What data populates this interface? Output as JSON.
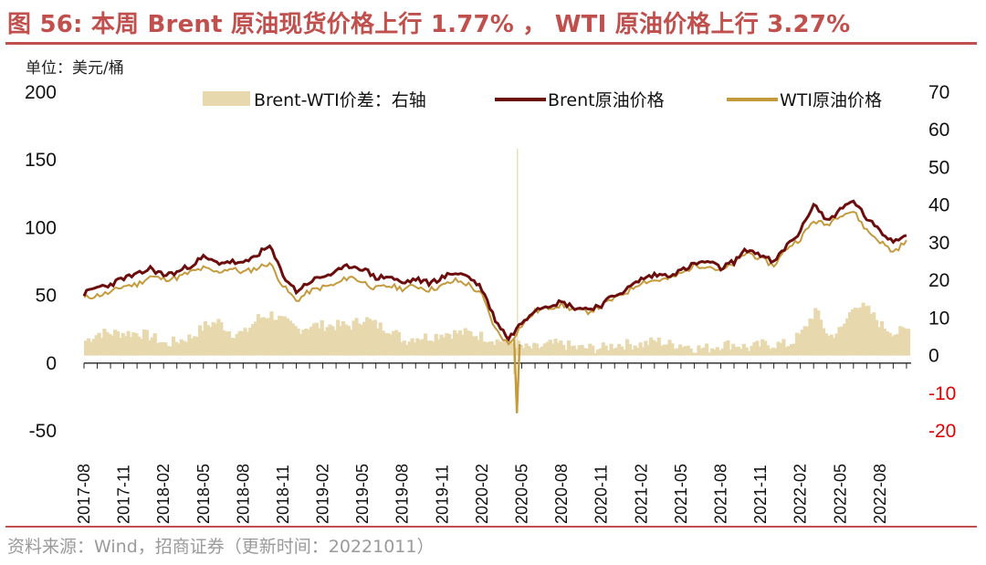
{
  "figure": {
    "title": "图 56:  本周 Brent 原油现货价格上行 1.77% ， WTI 原油价格上行 3.27%",
    "unit_label": "单位：美元/桶",
    "source": "资料来源：Wind，招商证券（更新时间：20221011）"
  },
  "colors": {
    "title_red": "#c0504d",
    "brent": "#6b0d0d",
    "wti": "#c49a3c",
    "spread": "#e8d8ae",
    "negative_tick": "#e00000"
  },
  "chart_data": {
    "type": "line",
    "left_axis": {
      "ylim": [
        -50,
        200
      ],
      "ticks": [
        "200",
        "150",
        "100",
        "50",
        "0",
        "-50"
      ],
      "tick_values": [
        200,
        150,
        100,
        50,
        0,
        -50
      ]
    },
    "right_axis": {
      "ylim": [
        -20,
        70
      ],
      "ticks": [
        "70",
        "60",
        "50",
        "40",
        "30",
        "20",
        "10",
        "0",
        "-10",
        "-20"
      ],
      "tick_values": [
        70,
        60,
        50,
        40,
        30,
        20,
        10,
        0,
        -10,
        -20
      ]
    },
    "x_ticks": [
      "2017-08",
      "2017-11",
      "2018-02",
      "2018-05",
      "2018-08",
      "2018-11",
      "2019-02",
      "2019-05",
      "2019-08",
      "2019-11",
      "2020-02",
      "2020-05",
      "2020-08",
      "2020-11",
      "2021-02",
      "2021-05",
      "2021-08",
      "2021-11",
      "2022-02",
      "2022-05",
      "2022-08"
    ],
    "x_range": [
      "2017-08",
      "2022-10"
    ],
    "legend": [
      "Brent-WTI价差：右轴",
      "Brent原油价格",
      "WTI原油价格"
    ],
    "legend_placement": "top",
    "series": [
      {
        "name": "Brent原油价格",
        "axis": "left",
        "points": [
          [
            "2017-08",
            51
          ],
          [
            "2017-09",
            56
          ],
          [
            "2017-10",
            58
          ],
          [
            "2017-11",
            63
          ],
          [
            "2017-12",
            65
          ],
          [
            "2018-01",
            70
          ],
          [
            "2018-02",
            65
          ],
          [
            "2018-03",
            67
          ],
          [
            "2018-04",
            72
          ],
          [
            "2018-05",
            78
          ],
          [
            "2018-06",
            74
          ],
          [
            "2018-07",
            75
          ],
          [
            "2018-08",
            73
          ],
          [
            "2018-09",
            80
          ],
          [
            "2018-10",
            86
          ],
          [
            "2018-11",
            65
          ],
          [
            "2018-12",
            53
          ],
          [
            "2019-01",
            60
          ],
          [
            "2019-02",
            64
          ],
          [
            "2019-03",
            67
          ],
          [
            "2019-04",
            72
          ],
          [
            "2019-05",
            70
          ],
          [
            "2019-06",
            63
          ],
          [
            "2019-07",
            64
          ],
          [
            "2019-08",
            59
          ],
          [
            "2019-09",
            62
          ],
          [
            "2019-10",
            59
          ],
          [
            "2019-11",
            63
          ],
          [
            "2019-12",
            67
          ],
          [
            "2020-01",
            64
          ],
          [
            "2020-02",
            55
          ],
          [
            "2020-03",
            32
          ],
          [
            "2020-04",
            18
          ],
          [
            "2020-05",
            30
          ],
          [
            "2020-06",
            40
          ],
          [
            "2020-07",
            43
          ],
          [
            "2020-08",
            45
          ],
          [
            "2020-09",
            41
          ],
          [
            "2020-10",
            40
          ],
          [
            "2020-11",
            43
          ],
          [
            "2020-12",
            50
          ],
          [
            "2021-01",
            55
          ],
          [
            "2021-02",
            62
          ],
          [
            "2021-03",
            65
          ],
          [
            "2021-04",
            65
          ],
          [
            "2021-05",
            68
          ],
          [
            "2021-06",
            73
          ],
          [
            "2021-07",
            75
          ],
          [
            "2021-08",
            70
          ],
          [
            "2021-09",
            75
          ],
          [
            "2021-10",
            84
          ],
          [
            "2021-11",
            80
          ],
          [
            "2021-12",
            74
          ],
          [
            "2022-01",
            87
          ],
          [
            "2022-02",
            97
          ],
          [
            "2022-03",
            118
          ],
          [
            "2022-04",
            105
          ],
          [
            "2022-05",
            113
          ],
          [
            "2022-06",
            120
          ],
          [
            "2022-07",
            107
          ],
          [
            "2022-08",
            97
          ],
          [
            "2022-09",
            90
          ],
          [
            "2022-10",
            96
          ]
        ]
      },
      {
        "name": "WTI原油价格",
        "axis": "left",
        "points": [
          [
            "2017-08",
            48
          ],
          [
            "2017-09",
            50
          ],
          [
            "2017-10",
            52
          ],
          [
            "2017-11",
            57
          ],
          [
            "2017-12",
            58
          ],
          [
            "2018-01",
            64
          ],
          [
            "2018-02",
            62
          ],
          [
            "2018-03",
            63
          ],
          [
            "2018-04",
            67
          ],
          [
            "2018-05",
            70
          ],
          [
            "2018-06",
            67
          ],
          [
            "2018-07",
            70
          ],
          [
            "2018-08",
            67
          ],
          [
            "2018-09",
            70
          ],
          [
            "2018-10",
            74
          ],
          [
            "2018-11",
            57
          ],
          [
            "2018-12",
            46
          ],
          [
            "2019-01",
            53
          ],
          [
            "2019-02",
            56
          ],
          [
            "2019-03",
            58
          ],
          [
            "2019-04",
            64
          ],
          [
            "2019-05",
            60
          ],
          [
            "2019-06",
            55
          ],
          [
            "2019-07",
            57
          ],
          [
            "2019-08",
            55
          ],
          [
            "2019-09",
            57
          ],
          [
            "2019-10",
            54
          ],
          [
            "2019-11",
            57
          ],
          [
            "2019-12",
            61
          ],
          [
            "2020-01",
            58
          ],
          [
            "2020-02",
            50
          ],
          [
            "2020-03",
            25
          ],
          [
            "2020-04",
            14
          ],
          [
            "2020-05",
            28
          ],
          [
            "2020-06",
            38
          ],
          [
            "2020-07",
            41
          ],
          [
            "2020-08",
            43
          ],
          [
            "2020-09",
            39
          ],
          [
            "2020-10",
            38
          ],
          [
            "2020-11",
            42
          ],
          [
            "2020-12",
            48
          ],
          [
            "2021-01",
            53
          ],
          [
            "2021-02",
            60
          ],
          [
            "2021-03",
            61
          ],
          [
            "2021-04",
            62
          ],
          [
            "2021-05",
            66
          ],
          [
            "2021-06",
            72
          ],
          [
            "2021-07",
            72
          ],
          [
            "2021-08",
            68
          ],
          [
            "2021-09",
            73
          ],
          [
            "2021-10",
            82
          ],
          [
            "2021-11",
            77
          ],
          [
            "2021-12",
            72
          ],
          [
            "2022-01",
            85
          ],
          [
            "2022-02",
            92
          ],
          [
            "2022-03",
            105
          ],
          [
            "2022-04",
            102
          ],
          [
            "2022-05",
            110
          ],
          [
            "2022-06",
            112
          ],
          [
            "2022-07",
            98
          ],
          [
            "2022-08",
            90
          ],
          [
            "2022-09",
            82
          ],
          [
            "2022-10",
            90
          ]
        ],
        "annotations": [
          [
            "2020-04-20",
            -37
          ]
        ]
      },
      {
        "name": "Brent-WTI价差：右轴",
        "axis": "right",
        "type": "area",
        "points": [
          [
            "2017-08",
            4
          ],
          [
            "2017-09",
            6
          ],
          [
            "2017-10",
            6
          ],
          [
            "2017-11",
            6
          ],
          [
            "2017-12",
            6
          ],
          [
            "2018-01",
            5
          ],
          [
            "2018-02",
            3
          ],
          [
            "2018-03",
            4
          ],
          [
            "2018-04",
            5
          ],
          [
            "2018-05",
            8
          ],
          [
            "2018-06",
            9
          ],
          [
            "2018-07",
            6
          ],
          [
            "2018-08",
            6
          ],
          [
            "2018-09",
            10
          ],
          [
            "2018-10",
            11
          ],
          [
            "2018-11",
            9
          ],
          [
            "2018-12",
            7
          ],
          [
            "2019-01",
            8
          ],
          [
            "2019-02",
            8
          ],
          [
            "2019-03",
            8
          ],
          [
            "2019-04",
            8
          ],
          [
            "2019-05",
            10
          ],
          [
            "2019-06",
            8
          ],
          [
            "2019-07",
            7
          ],
          [
            "2019-08",
            4
          ],
          [
            "2019-09",
            5
          ],
          [
            "2019-10",
            5
          ],
          [
            "2019-11",
            6
          ],
          [
            "2019-12",
            6
          ],
          [
            "2020-01",
            6
          ],
          [
            "2020-02",
            5
          ],
          [
            "2020-03",
            4
          ],
          [
            "2020-04",
            4
          ],
          [
            "2020-05",
            2
          ],
          [
            "2020-06",
            2
          ],
          [
            "2020-07",
            3
          ],
          [
            "2020-08",
            3
          ],
          [
            "2020-09",
            2
          ],
          [
            "2020-10",
            2
          ],
          [
            "2020-11",
            2
          ],
          [
            "2020-12",
            3
          ],
          [
            "2021-01",
            3
          ],
          [
            "2021-02",
            3
          ],
          [
            "2021-03",
            4
          ],
          [
            "2021-04",
            3
          ],
          [
            "2021-05",
            3
          ],
          [
            "2021-06",
            2
          ],
          [
            "2021-07",
            2
          ],
          [
            "2021-08",
            3
          ],
          [
            "2021-09",
            3
          ],
          [
            "2021-10",
            2
          ],
          [
            "2021-11",
            3
          ],
          [
            "2021-12",
            3
          ],
          [
            "2022-01",
            3
          ],
          [
            "2022-02",
            6
          ],
          [
            "2022-03",
            12
          ],
          [
            "2022-04",
            5
          ],
          [
            "2022-05",
            7
          ],
          [
            "2022-06",
            14
          ],
          [
            "2022-07",
            12
          ],
          [
            "2022-08",
            8
          ],
          [
            "2022-09",
            6
          ],
          [
            "2022-10",
            7
          ]
        ]
      }
    ]
  }
}
